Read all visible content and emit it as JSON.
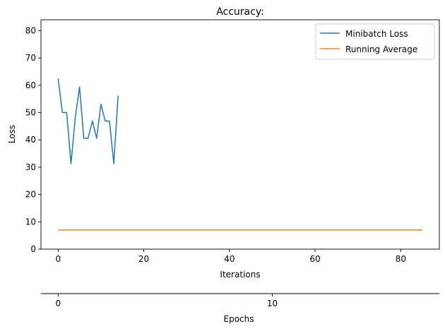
{
  "chart_data": {
    "type": "line",
    "title": "Accuracy:",
    "xlabel": "Iterations",
    "ylabel": "Loss",
    "secondary_xlabel": "Epochs",
    "xlim": [
      -4,
      89
    ],
    "ylim": [
      0,
      84
    ],
    "x_ticks": [
      0,
      20,
      40,
      60,
      80
    ],
    "y_ticks": [
      0,
      10,
      20,
      30,
      40,
      50,
      60,
      70,
      80
    ],
    "secondary_x_ticks": [
      0,
      10
    ],
    "grid": false,
    "legend_position": "top-right",
    "series": [
      {
        "name": "Minibatch Loss",
        "color": "#1f77b4",
        "x": [
          0,
          1,
          2,
          3,
          4,
          5,
          6,
          7,
          8,
          9,
          10,
          11,
          12,
          13,
          14
        ],
        "y": [
          62.5,
          50.0,
          50.0,
          31.25,
          48.0,
          59.4,
          40.6,
          40.6,
          46.9,
          40.6,
          53.1,
          46.9,
          46.9,
          31.25,
          56.25
        ]
      },
      {
        "name": "Running Average",
        "color": "#ff7f0e",
        "x": [
          0,
          85
        ],
        "y": [
          7.0,
          7.0
        ]
      }
    ]
  }
}
